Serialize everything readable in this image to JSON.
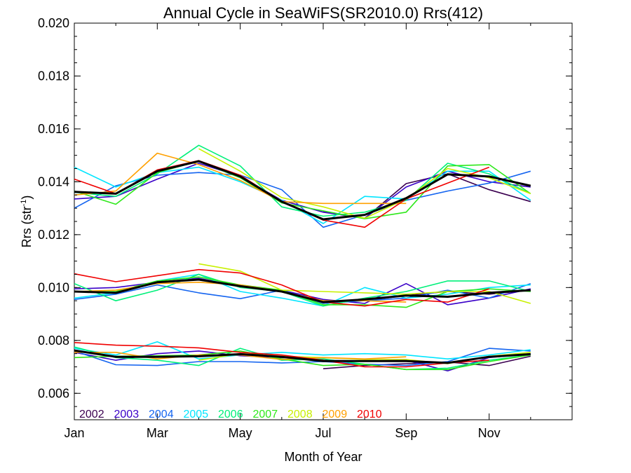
{
  "chart_data": {
    "type": "line",
    "title": "Annual Cycle in SeaWiFS(SR2010.0) Rrs(412)",
    "xlabel": "Month of Year",
    "ylabel_main": "Rrs (str",
    "ylabel_sup": "-1",
    "ylabel_close": ")",
    "xlim": [
      1,
      13
    ],
    "ylim": [
      0.005,
      0.02
    ],
    "x_ticks": [
      {
        "value": 1,
        "label": "Jan"
      },
      {
        "value": 3,
        "label": "Mar"
      },
      {
        "value": 5,
        "label": "May"
      },
      {
        "value": 7,
        "label": "Jul"
      },
      {
        "value": 9,
        "label": "Sep"
      },
      {
        "value": 11,
        "label": "Nov"
      }
    ],
    "y_ticks": [
      {
        "value": 0.006,
        "label": "0.006"
      },
      {
        "value": 0.008,
        "label": "0.008"
      },
      {
        "value": 0.01,
        "label": "0.010"
      },
      {
        "value": 0.012,
        "label": "0.012"
      },
      {
        "value": 0.014,
        "label": "0.014"
      },
      {
        "value": 0.016,
        "label": "0.016"
      },
      {
        "value": 0.018,
        "label": "0.018"
      },
      {
        "value": 0.02,
        "label": "0.020"
      }
    ],
    "legend_position": "bottom-left",
    "grid": false,
    "months": [
      1,
      2,
      3,
      4,
      5,
      6,
      7,
      8,
      9,
      10,
      11,
      12
    ],
    "series": [
      {
        "name": "2002",
        "color": "#3b0050",
        "groups": [
          [
            null,
            null,
            null,
            null,
            null,
            null,
            0.01288,
            0.01262,
            0.01393,
            0.0143,
            0.0137,
            0.01325
          ],
          [
            null,
            null,
            null,
            null,
            null,
            null,
            0.0095,
            0.0095,
            0.0097,
            0.00985,
            0.00975,
            0.0099
          ],
          [
            null,
            null,
            null,
            null,
            null,
            null,
            0.00693,
            0.00705,
            0.00712,
            0.00718,
            0.00705,
            0.0074
          ]
        ]
      },
      {
        "name": "2003",
        "color": "#3a00c8",
        "groups": [
          [
            0.01335,
            0.01345,
            0.0141,
            0.0147,
            0.0142,
            0.0133,
            0.01285,
            0.01262,
            0.0138,
            0.0144,
            0.014,
            0.0138
          ],
          [
            0.00995,
            0.01,
            0.0102,
            0.01035,
            0.01005,
            0.0099,
            0.00955,
            0.0094,
            0.01015,
            0.00935,
            0.0096,
            0.00995
          ],
          [
            0.00755,
            0.00725,
            0.0075,
            0.0076,
            0.00742,
            0.00735,
            0.00725,
            0.00722,
            0.00725,
            0.00685,
            0.00735,
            0.0075
          ]
        ]
      },
      {
        "name": "2004",
        "color": "#1565f0",
        "groups": [
          [
            0.013,
            0.01385,
            0.01425,
            0.01435,
            0.01425,
            0.0137,
            0.01228,
            0.01275,
            0.0133,
            0.01365,
            0.01395,
            0.0144
          ],
          [
            0.00955,
            0.00975,
            0.0101,
            0.0098,
            0.00958,
            0.0099,
            0.0094,
            0.0095,
            0.0096,
            0.0099,
            0.0096,
            0.01015
          ],
          [
            0.0076,
            0.00708,
            0.00705,
            0.0072,
            0.0072,
            0.00715,
            0.0072,
            0.0071,
            0.00705,
            0.0072,
            0.0077,
            0.0076
          ]
        ]
      },
      {
        "name": "2005",
        "color": "#00e5ff",
        "groups": [
          [
            0.01455,
            0.0138,
            0.01435,
            0.01455,
            0.014,
            0.0133,
            0.01242,
            0.01345,
            0.01335,
            0.0144,
            0.0144,
            0.0133
          ],
          [
            0.0096,
            0.0098,
            0.01025,
            0.0105,
            0.00985,
            0.0096,
            0.0093,
            0.01,
            0.0096,
            0.00975,
            0.01,
            0.0101
          ],
          [
            0.0077,
            0.00745,
            0.00795,
            0.0073,
            0.00745,
            0.00755,
            0.00745,
            0.0075,
            0.00745,
            0.0073,
            0.00745,
            0.00765
          ]
        ]
      },
      {
        "name": "2006",
        "color": "#00f07a",
        "groups": [
          [
            0.0136,
            0.01345,
            0.0143,
            0.01538,
            0.0146,
            0.01305,
            0.0127,
            0.01285,
            0.0133,
            0.0147,
            0.0143,
            0.01355
          ],
          [
            0.01015,
            0.0095,
            0.0099,
            0.0105,
            0.01,
            0.00985,
            0.0093,
            0.0096,
            0.00985,
            0.01025,
            0.01025,
            0.00985
          ],
          [
            0.00775,
            0.00735,
            0.00725,
            0.00705,
            0.0077,
            0.00725,
            0.0073,
            0.0071,
            0.0069,
            0.00695,
            0.00725,
            0.00745
          ]
        ]
      },
      {
        "name": "2007",
        "color": "#2ee81a",
        "groups": [
          [
            0.01365,
            0.01315,
            0.01435,
            0.01478,
            0.01415,
            0.0132,
            0.0129,
            0.0126,
            0.01285,
            0.0146,
            0.01465,
            0.01355
          ],
          [
            0.00985,
            0.00985,
            0.01025,
            0.0104,
            0.0101,
            0.0099,
            0.00935,
            0.00935,
            0.00925,
            0.00985,
            0.00995,
            0.00985
          ],
          [
            0.00735,
            0.0074,
            0.00742,
            0.00745,
            0.0076,
            0.0073,
            0.00705,
            0.0071,
            0.0069,
            0.0069,
            0.0072,
            0.00745
          ]
        ]
      },
      {
        "name": "2008",
        "color": "#c8f000",
        "groups": [
          [
            null,
            null,
            null,
            0.01525,
            0.0144,
            0.0134,
            0.01305,
            0.01262,
            0.01335,
            0.0145,
            0.01415,
            0.01355
          ],
          [
            null,
            null,
            null,
            0.0109,
            0.01062,
            0.0099,
            0.00985,
            0.0098,
            0.00975,
            0.00985,
            0.00985,
            0.0094
          ],
          [
            null,
            null,
            null,
            0.00725,
            0.0075,
            0.0074,
            0.00735,
            0.00728,
            0.00728,
            0.00712,
            0.0074,
            0.00755
          ]
        ]
      },
      {
        "name": "2009",
        "color": "#ffa000",
        "groups": [
          [
            0.0135,
            0.01365,
            0.01508,
            0.01465,
            0.01405,
            0.01325,
            0.01318,
            0.01318,
            0.01318,
            null,
            null,
            null
          ],
          [
            0.00985,
            0.0099,
            0.01015,
            0.0102,
            0.0101,
            0.00985,
            0.0095,
            0.0095,
            0.00945,
            null,
            null,
            null
          ],
          [
            0.00755,
            0.00755,
            0.0073,
            0.00745,
            0.00745,
            0.00728,
            0.00735,
            0.0073,
            0.00738,
            null,
            null,
            null
          ]
        ]
      },
      {
        "name": "2010",
        "color": "#f00000",
        "groups": [
          [
            0.0141,
            0.01355,
            0.01445,
            0.0148,
            0.01425,
            0.01325,
            0.01255,
            0.01228,
            0.01335,
            0.01395,
            0.01455,
            null
          ],
          [
            0.01052,
            0.01022,
            0.01045,
            0.01068,
            0.01055,
            0.0101,
            0.00945,
            0.0093,
            0.00955,
            0.00945,
            0.00995,
            null
          ],
          [
            0.00792,
            0.00782,
            0.00778,
            0.00772,
            0.00755,
            0.00745,
            0.00725,
            0.007,
            0.007,
            0.00715,
            0.00725,
            null
          ]
        ]
      },
      {
        "name": "",
        "color": "#000000",
        "width": 3,
        "groups": [
          [
            0.01362,
            0.01355,
            0.0144,
            0.01478,
            0.0142,
            0.01325,
            0.01258,
            0.01275,
            0.01338,
            0.01428,
            0.0142,
            0.01385
          ],
          [
            0.00985,
            0.0098,
            0.0102,
            0.0103,
            0.01005,
            0.00985,
            0.00945,
            0.00955,
            0.0097,
            0.00965,
            0.0098,
            0.0099
          ],
          [
            0.00762,
            0.00738,
            0.00738,
            0.0074,
            0.00748,
            0.00738,
            0.00722,
            0.00722,
            0.00722,
            0.00715,
            0.00738,
            0.00748
          ]
        ]
      }
    ]
  }
}
